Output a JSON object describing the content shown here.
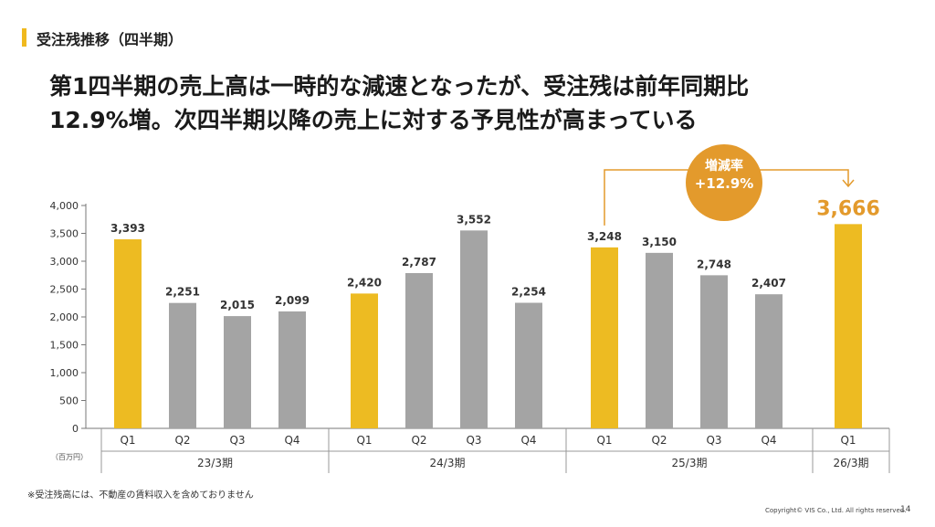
{
  "section_title": "受注残推移（四半期）",
  "headline_line1": "第1四半期の売上高は一時的な減速となったが、受注残は前年同期比",
  "headline_line2": "12.9%増。次四半期以降の売上に対する予見性が高まっている",
  "badge": {
    "line1": "増減率",
    "line2": "+12.9%"
  },
  "unit_label": "（百万円）",
  "footnote": "※受注残高には、不動産の賃料収入を含めておりません",
  "copyright": "Copyright© VIS Co., Ltd. All rights reserved.",
  "page_number": "14",
  "colors": {
    "highlight": "#EDBB22",
    "normal": "#A4A4A4",
    "accent": "#E39A2C",
    "badge_text": "#ffffff"
  },
  "chart_data": {
    "type": "bar",
    "ylim": [
      0,
      4000
    ],
    "yticks": [
      0,
      500,
      1000,
      1500,
      2000,
      2500,
      3000,
      3500,
      4000
    ],
    "ytick_labels": [
      "0",
      "500",
      "1,000",
      "1,500",
      "2,000",
      "2,500",
      "3,000",
      "3,500",
      "4,000"
    ],
    "groups": [
      {
        "label": "23/3期",
        "bars": [
          {
            "quarter": "Q1",
            "value": 3393,
            "label": "3,393",
            "highlight": true
          },
          {
            "quarter": "Q2",
            "value": 2251,
            "label": "2,251",
            "highlight": false
          },
          {
            "quarter": "Q3",
            "value": 2015,
            "label": "2,015",
            "highlight": false
          },
          {
            "quarter": "Q4",
            "value": 2099,
            "label": "2,099",
            "highlight": false
          }
        ]
      },
      {
        "label": "24/3期",
        "bars": [
          {
            "quarter": "Q1",
            "value": 2420,
            "label": "2,420",
            "highlight": true
          },
          {
            "quarter": "Q2",
            "value": 2787,
            "label": "2,787",
            "highlight": false
          },
          {
            "quarter": "Q3",
            "value": 3552,
            "label": "3,552",
            "highlight": false
          },
          {
            "quarter": "Q4",
            "value": 2254,
            "label": "2,254",
            "highlight": false
          }
        ]
      },
      {
        "label": "25/3期",
        "bars": [
          {
            "quarter": "Q1",
            "value": 3248,
            "label": "3,248",
            "highlight": true
          },
          {
            "quarter": "Q2",
            "value": 3150,
            "label": "3,150",
            "highlight": false
          },
          {
            "quarter": "Q3",
            "value": 2748,
            "label": "2,748",
            "highlight": false
          },
          {
            "quarter": "Q4",
            "value": 2407,
            "label": "2,407",
            "highlight": false
          }
        ]
      },
      {
        "label": "26/3期",
        "bars": [
          {
            "quarter": "Q1",
            "value": 3666,
            "label": "3,666",
            "highlight": true,
            "emphasis": true
          }
        ]
      }
    ]
  }
}
